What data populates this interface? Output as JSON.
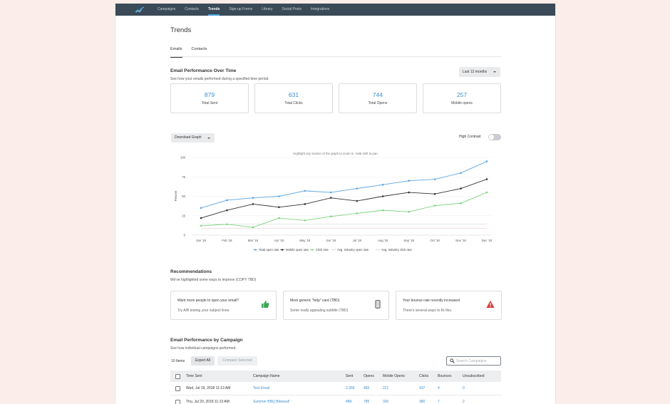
{
  "nav": {
    "items": [
      {
        "label": "Campaigns",
        "active": false
      },
      {
        "label": "Contacts",
        "active": false
      },
      {
        "label": "Trends",
        "active": true
      },
      {
        "label": "Sign-up Forms",
        "active": false
      },
      {
        "label": "Library",
        "active": false
      },
      {
        "label": "Social Posts",
        "active": false
      },
      {
        "label": "Integrations",
        "active": false
      }
    ]
  },
  "page": {
    "title": "Trends",
    "tabs": [
      {
        "label": "Emails",
        "active": true
      },
      {
        "label": "Contacts",
        "active": false
      }
    ]
  },
  "performance": {
    "title": "Email Performance Over Time",
    "subtitle": "See how your emails performed during a specified time period.",
    "period": "Last 12 months",
    "stats": [
      {
        "value": "879",
        "label": "Total Sent"
      },
      {
        "value": "631",
        "label": "Total Clicks"
      },
      {
        "value": "744",
        "label": "Total Opens"
      },
      {
        "value": "257",
        "label": "Mobile opens"
      }
    ],
    "download_label": "Download Graph",
    "high_contrast_label": "High Contrast",
    "high_contrast_on": false
  },
  "chart_data": {
    "type": "line",
    "annotation": "Highlight any section of the graph to zoom in. Hold shift to pan.",
    "ylabel": "Percent",
    "ylim": [
      0,
      100
    ],
    "yticks": [
      "0",
      "25",
      "50",
      "75",
      "100"
    ],
    "categories": [
      "Jan '18",
      "Feb '18",
      "Mar '18",
      "Apr '18",
      "May '18",
      "Jun '18",
      "Jul '18",
      "Aug '18",
      "Sep '18",
      "Oct '18",
      "Nov '18",
      "Dec '18"
    ],
    "series": [
      {
        "name": "Total open rate",
        "color": "#5da5e0",
        "marker": true,
        "values": [
          35,
          45,
          48,
          50,
          57,
          55,
          60,
          65,
          70,
          72,
          80,
          95
        ]
      },
      {
        "name": "Mobile open rate",
        "color": "#333333",
        "marker": true,
        "values": [
          22,
          32,
          40,
          36,
          40,
          48,
          44,
          50,
          55,
          53,
          60,
          72
        ]
      },
      {
        "name": "Click rate",
        "color": "#7ed47e",
        "marker": true,
        "values": [
          12,
          14,
          10,
          22,
          19,
          24,
          28,
          32,
          30,
          38,
          41,
          55
        ]
      },
      {
        "name": "Avg. industry open rate",
        "color": "#cfcfcf",
        "marker": false,
        "values": [
          14,
          14,
          14,
          14,
          14,
          14,
          14,
          14,
          14,
          14,
          14,
          14
        ]
      },
      {
        "name": "Avg. industry click rate",
        "color": "#e5c8cf",
        "marker": false,
        "values": [
          9,
          9,
          9,
          9,
          9,
          9,
          9,
          9,
          9,
          9,
          9,
          9
        ]
      }
    ],
    "legend_position": "bottom"
  },
  "recommendations": {
    "title": "Recommendations",
    "subtitle": "We've highlighted some ways to improve (COPY TBD)",
    "cards": [
      {
        "title": "Want more people to open your email?",
        "subtitle": "Try A/B testing your subject lines.",
        "icon": "thumbs-up-icon",
        "color": "#3aa655"
      },
      {
        "title": "More generic \"help\" card (TBD)",
        "subtitle": "Some really appealing subtitle (TBD)",
        "icon": "mobile-phone-icon",
        "color": "#444444"
      },
      {
        "title": "Your bounce rate recently increased",
        "subtitle": "There's several ways to fix this.",
        "icon": "warning-icon",
        "color": "#d63b3b"
      }
    ]
  },
  "campaigns": {
    "title": "Email Performance by Campaign",
    "subtitle": "See how individual campaigns performed.",
    "items_count": "10 Items",
    "export_label": "Export All",
    "compare_label": "Compare Selected",
    "search_placeholder": "Search Campaigns",
    "columns": [
      "Time Sent",
      "Campaign Name",
      "Sent",
      "Opens",
      "Mobile Opens",
      "Clicks",
      "Bounces",
      "Unsubscribed"
    ],
    "rows": [
      {
        "time": "Wed, Jul 19, 2018 11:13 AM",
        "name": "Test Email",
        "sent": "2,356",
        "opens": "465",
        "mobile": "221",
        "clicks": "437",
        "bounces": "4",
        "unsub": "0"
      },
      {
        "time": "Thu, Jul 20, 2018 11:13 AM",
        "name": "Summer BBQ Blowout!",
        "sent": "489",
        "opens": "785",
        "mobile": "320",
        "clicks": "380",
        "bounces": "7",
        "unsub": "2"
      }
    ]
  }
}
